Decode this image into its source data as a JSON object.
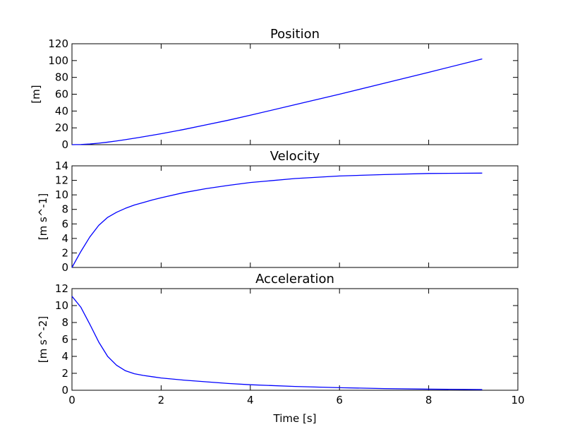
{
  "figure": {
    "shared_xlabel": "Time [s]",
    "colors": {
      "line": "#0000ff",
      "frame": "#000000",
      "background": "#ffffff"
    }
  },
  "chart_data": [
    {
      "type": "line",
      "title": "Position",
      "xlabel": "",
      "ylabel": "[m]",
      "xlim": [
        0,
        10
      ],
      "ylim": [
        0,
        120
      ],
      "xticks": [
        0,
        2,
        4,
        6,
        8,
        10
      ],
      "yticks": [
        0,
        20,
        40,
        60,
        80,
        100,
        120
      ],
      "show_xtick_labels": false,
      "grid": false,
      "series": [
        {
          "x": [
            0,
            0.2,
            0.4,
            0.6,
            0.8,
            1.0,
            1.2,
            1.5,
            2.0,
            2.5,
            3.0,
            3.5,
            4.0,
            5.0,
            6.0,
            7.0,
            8.0,
            9.2
          ],
          "y": [
            0,
            0.2,
            0.8,
            1.8,
            3.0,
            4.4,
            6.0,
            8.5,
            13.0,
            18.0,
            23.5,
            29.0,
            35.0,
            47.5,
            60.0,
            73.0,
            86.0,
            102.0
          ]
        }
      ]
    },
    {
      "type": "line",
      "title": "Velocity",
      "xlabel": "",
      "ylabel": "[m s^-1]",
      "xlim": [
        0,
        10
      ],
      "ylim": [
        0,
        14
      ],
      "xticks": [
        0,
        2,
        4,
        6,
        8,
        10
      ],
      "yticks": [
        0,
        2,
        4,
        6,
        8,
        10,
        12,
        14
      ],
      "show_xtick_labels": false,
      "grid": false,
      "series": [
        {
          "x": [
            0,
            0.2,
            0.4,
            0.6,
            0.8,
            1.0,
            1.2,
            1.4,
            1.6,
            1.8,
            2.0,
            2.5,
            3.0,
            3.5,
            4.0,
            5.0,
            6.0,
            7.0,
            8.0,
            9.2
          ],
          "y": [
            0,
            2.2,
            4.2,
            5.8,
            6.9,
            7.6,
            8.15,
            8.6,
            8.95,
            9.3,
            9.6,
            10.3,
            10.85,
            11.3,
            11.7,
            12.25,
            12.6,
            12.8,
            12.95,
            13.0
          ]
        }
      ]
    },
    {
      "type": "line",
      "title": "Acceleration",
      "xlabel": "Time [s]",
      "ylabel": "[m s^-2]",
      "xlim": [
        0,
        10
      ],
      "ylim": [
        0,
        12
      ],
      "xticks": [
        0,
        2,
        4,
        6,
        8,
        10
      ],
      "yticks": [
        0,
        2,
        4,
        6,
        8,
        10,
        12
      ],
      "show_xtick_labels": true,
      "grid": false,
      "series": [
        {
          "x": [
            0,
            0.2,
            0.4,
            0.6,
            0.8,
            1.0,
            1.2,
            1.4,
            1.6,
            1.8,
            2.0,
            2.5,
            3.0,
            3.5,
            4.0,
            5.0,
            6.0,
            7.0,
            8.0,
            9.2
          ],
          "y": [
            11.1,
            9.8,
            7.8,
            5.7,
            4.0,
            2.95,
            2.3,
            1.95,
            1.75,
            1.6,
            1.45,
            1.2,
            1.0,
            0.8,
            0.65,
            0.45,
            0.3,
            0.2,
            0.13,
            0.08
          ]
        }
      ]
    }
  ]
}
